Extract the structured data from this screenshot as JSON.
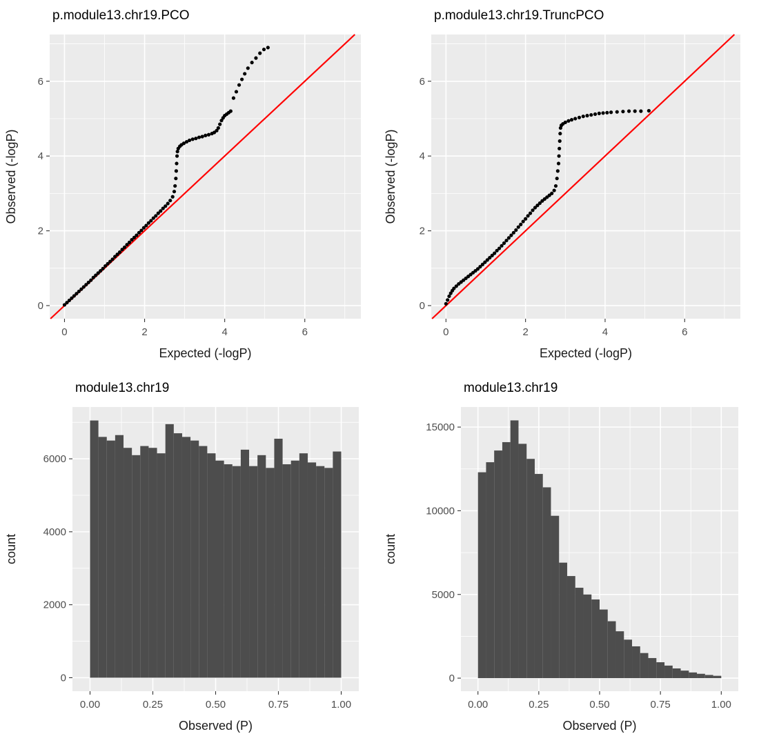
{
  "colors": {
    "panel_bg": "#EBEBEB",
    "grid": "#FFFFFF",
    "bar_fill": "#4D4D4D",
    "point": "#000000",
    "refline": "#FF0000",
    "tick_text": "#4D4D4D",
    "axis_title_text": "#1A1A1A",
    "title_text": "#000000"
  },
  "chart_data": [
    {
      "type": "scatter",
      "title": "p.module13.chr19.PCO",
      "xlabel": "Expected (-logP)",
      "ylabel": "Observed (-logP)",
      "xlim": [
        -0.37,
        7.4
      ],
      "ylim": [
        -0.35,
        7.25
      ],
      "x_ticks": [
        0,
        2,
        4,
        6
      ],
      "y_ticks": [
        0,
        2,
        4,
        6
      ],
      "x_minor": [
        1,
        3,
        5,
        7
      ],
      "y_minor": [
        1,
        3,
        5,
        7
      ],
      "abline": {
        "slope": 1,
        "intercept": 0
      },
      "points": [
        [
          0,
          0.02
        ],
        [
          0.06,
          0.08
        ],
        [
          0.12,
          0.14
        ],
        [
          0.18,
          0.2
        ],
        [
          0.24,
          0.26
        ],
        [
          0.3,
          0.32
        ],
        [
          0.36,
          0.38
        ],
        [
          0.42,
          0.44
        ],
        [
          0.48,
          0.5
        ],
        [
          0.54,
          0.56
        ],
        [
          0.6,
          0.62
        ],
        [
          0.66,
          0.68
        ],
        [
          0.72,
          0.75
        ],
        [
          0.78,
          0.81
        ],
        [
          0.84,
          0.87
        ],
        [
          0.9,
          0.93
        ],
        [
          0.96,
          0.99
        ],
        [
          1.02,
          1.06
        ],
        [
          1.08,
          1.12
        ],
        [
          1.14,
          1.18
        ],
        [
          1.2,
          1.24
        ],
        [
          1.26,
          1.31
        ],
        [
          1.32,
          1.37
        ],
        [
          1.38,
          1.43
        ],
        [
          1.44,
          1.5
        ],
        [
          1.5,
          1.56
        ],
        [
          1.56,
          1.63
        ],
        [
          1.62,
          1.69
        ],
        [
          1.68,
          1.76
        ],
        [
          1.74,
          1.82
        ],
        [
          1.8,
          1.88
        ],
        [
          1.86,
          1.95
        ],
        [
          1.92,
          2.01
        ],
        [
          1.98,
          2.08
        ],
        [
          2.04,
          2.14
        ],
        [
          2.1,
          2.21
        ],
        [
          2.16,
          2.27
        ],
        [
          2.22,
          2.34
        ],
        [
          2.28,
          2.4
        ],
        [
          2.34,
          2.47
        ],
        [
          2.4,
          2.53
        ],
        [
          2.46,
          2.6
        ],
        [
          2.52,
          2.66
        ],
        [
          2.58,
          2.73
        ],
        [
          2.64,
          2.81
        ],
        [
          2.7,
          2.91
        ],
        [
          2.74,
          3.05
        ],
        [
          2.76,
          3.2
        ],
        [
          2.78,
          3.4
        ],
        [
          2.79,
          3.6
        ],
        [
          2.8,
          3.8
        ],
        [
          2.81,
          4.0
        ],
        [
          2.82,
          4.12
        ],
        [
          2.84,
          4.2
        ],
        [
          2.88,
          4.26
        ],
        [
          2.92,
          4.3
        ],
        [
          2.98,
          4.34
        ],
        [
          3.05,
          4.38
        ],
        [
          3.12,
          4.42
        ],
        [
          3.2,
          4.45
        ],
        [
          3.28,
          4.47
        ],
        [
          3.36,
          4.5
        ],
        [
          3.44,
          4.52
        ],
        [
          3.52,
          4.55
        ],
        [
          3.6,
          4.57
        ],
        [
          3.68,
          4.6
        ],
        [
          3.74,
          4.63
        ],
        [
          3.8,
          4.68
        ],
        [
          3.84,
          4.75
        ],
        [
          3.88,
          4.85
        ],
        [
          3.92,
          4.95
        ],
        [
          3.96,
          5.02
        ],
        [
          4.0,
          5.08
        ],
        [
          4.05,
          5.12
        ],
        [
          4.1,
          5.16
        ],
        [
          4.15,
          5.2
        ],
        [
          4.22,
          5.55
        ],
        [
          4.29,
          5.72
        ],
        [
          4.36,
          5.9
        ],
        [
          4.43,
          6.05
        ],
        [
          4.5,
          6.2
        ],
        [
          4.58,
          6.35
        ],
        [
          4.68,
          6.5
        ],
        [
          4.78,
          6.62
        ],
        [
          4.88,
          6.75
        ],
        [
          4.98,
          6.85
        ],
        [
          5.08,
          6.9
        ]
      ]
    },
    {
      "type": "scatter",
      "title": "p.module13.chr19.TruncPCO",
      "xlabel": "Expected (-logP)",
      "ylabel": "Observed (-logP)",
      "xlim": [
        -0.37,
        7.4
      ],
      "ylim": [
        -0.35,
        7.25
      ],
      "x_ticks": [
        0,
        2,
        4,
        6
      ],
      "y_ticks": [
        0,
        2,
        4,
        6
      ],
      "x_minor": [
        1,
        3,
        5,
        7
      ],
      "y_minor": [
        1,
        3,
        5,
        7
      ],
      "abline": {
        "slope": 1,
        "intercept": 0
      },
      "points": [
        [
          0,
          0.05
        ],
        [
          0.04,
          0.15
        ],
        [
          0.08,
          0.25
        ],
        [
          0.12,
          0.33
        ],
        [
          0.16,
          0.4
        ],
        [
          0.2,
          0.46
        ],
        [
          0.26,
          0.52
        ],
        [
          0.32,
          0.58
        ],
        [
          0.38,
          0.63
        ],
        [
          0.44,
          0.68
        ],
        [
          0.5,
          0.73
        ],
        [
          0.56,
          0.78
        ],
        [
          0.62,
          0.83
        ],
        [
          0.68,
          0.88
        ],
        [
          0.74,
          0.93
        ],
        [
          0.8,
          0.98
        ],
        [
          0.86,
          1.04
        ],
        [
          0.92,
          1.1
        ],
        [
          0.98,
          1.16
        ],
        [
          1.04,
          1.22
        ],
        [
          1.1,
          1.28
        ],
        [
          1.16,
          1.34
        ],
        [
          1.22,
          1.4
        ],
        [
          1.28,
          1.47
        ],
        [
          1.34,
          1.53
        ],
        [
          1.4,
          1.6
        ],
        [
          1.46,
          1.67
        ],
        [
          1.52,
          1.74
        ],
        [
          1.58,
          1.81
        ],
        [
          1.64,
          1.88
        ],
        [
          1.7,
          1.95
        ],
        [
          1.76,
          2.02
        ],
        [
          1.82,
          2.1
        ],
        [
          1.88,
          2.17
        ],
        [
          1.94,
          2.25
        ],
        [
          2.0,
          2.32
        ],
        [
          2.06,
          2.4
        ],
        [
          2.12,
          2.47
        ],
        [
          2.18,
          2.55
        ],
        [
          2.24,
          2.62
        ],
        [
          2.3,
          2.68
        ],
        [
          2.36,
          2.74
        ],
        [
          2.42,
          2.8
        ],
        [
          2.48,
          2.85
        ],
        [
          2.54,
          2.9
        ],
        [
          2.6,
          2.95
        ],
        [
          2.66,
          3.0
        ],
        [
          2.72,
          3.08
        ],
        [
          2.76,
          3.2
        ],
        [
          2.79,
          3.4
        ],
        [
          2.81,
          3.6
        ],
        [
          2.83,
          3.8
        ],
        [
          2.84,
          4.0
        ],
        [
          2.85,
          4.2
        ],
        [
          2.86,
          4.4
        ],
        [
          2.87,
          4.6
        ],
        [
          2.88,
          4.75
        ],
        [
          2.9,
          4.82
        ],
        [
          2.94,
          4.86
        ],
        [
          3.0,
          4.9
        ],
        [
          3.08,
          4.94
        ],
        [
          3.16,
          4.97
        ],
        [
          3.25,
          5.0
        ],
        [
          3.35,
          5.03
        ],
        [
          3.45,
          5.06
        ],
        [
          3.55,
          5.08
        ],
        [
          3.65,
          5.1
        ],
        [
          3.75,
          5.12
        ],
        [
          3.85,
          5.14
        ],
        [
          3.95,
          5.15
        ],
        [
          4.05,
          5.16
        ],
        [
          4.15,
          5.17
        ],
        [
          4.3,
          5.18
        ],
        [
          4.45,
          5.19
        ],
        [
          4.6,
          5.2
        ],
        [
          4.75,
          5.2
        ],
        [
          4.9,
          5.2
        ],
        [
          5.1,
          5.21
        ]
      ]
    },
    {
      "type": "bar",
      "title": "module13.chr19",
      "xlabel": "Observed (P)",
      "ylabel": "count",
      "bin_start": 0,
      "bin_width": 0.0333333,
      "values": [
        7050,
        6600,
        6500,
        6650,
        6300,
        6100,
        6350,
        6300,
        6150,
        6950,
        6700,
        6600,
        6500,
        6350,
        6150,
        5950,
        5850,
        5800,
        6250,
        5800,
        6100,
        5750,
        6550,
        5850,
        5950,
        6150,
        5900,
        5800,
        5750,
        6200
      ],
      "xlim": [
        -0.07,
        1.07
      ],
      "ylim": [
        -370,
        7420
      ],
      "x_ticks": [
        0,
        0.25,
        0.5,
        0.75,
        1.0
      ],
      "x_tick_labels": [
        "0.00",
        "0.25",
        "0.50",
        "0.75",
        "1.00"
      ],
      "y_ticks": [
        0,
        2000,
        4000,
        6000
      ],
      "x_minor": [
        0.125,
        0.375,
        0.625,
        0.875
      ],
      "y_minor": [
        1000,
        3000,
        5000,
        7000
      ]
    },
    {
      "type": "bar",
      "title": "module13.chr19",
      "xlabel": "Observed (P)",
      "ylabel": "count",
      "bin_start": 0,
      "bin_width": 0.0333333,
      "values": [
        12300,
        12900,
        13600,
        14100,
        15400,
        14000,
        13100,
        12200,
        11400,
        9700,
        6900,
        6100,
        5400,
        5000,
        4700,
        4100,
        3400,
        2800,
        2300,
        1900,
        1500,
        1200,
        950,
        750,
        580,
        450,
        340,
        260,
        190,
        140
      ],
      "xlim": [
        -0.07,
        1.07
      ],
      "ylim": [
        -780,
        16200
      ],
      "x_ticks": [
        0,
        0.25,
        0.5,
        0.75,
        1.0
      ],
      "x_tick_labels": [
        "0.00",
        "0.25",
        "0.50",
        "0.75",
        "1.00"
      ],
      "y_ticks": [
        0,
        5000,
        10000,
        15000
      ],
      "x_minor": [
        0.125,
        0.375,
        0.625,
        0.875
      ],
      "y_minor": [
        2500,
        7500,
        12500
      ]
    }
  ]
}
